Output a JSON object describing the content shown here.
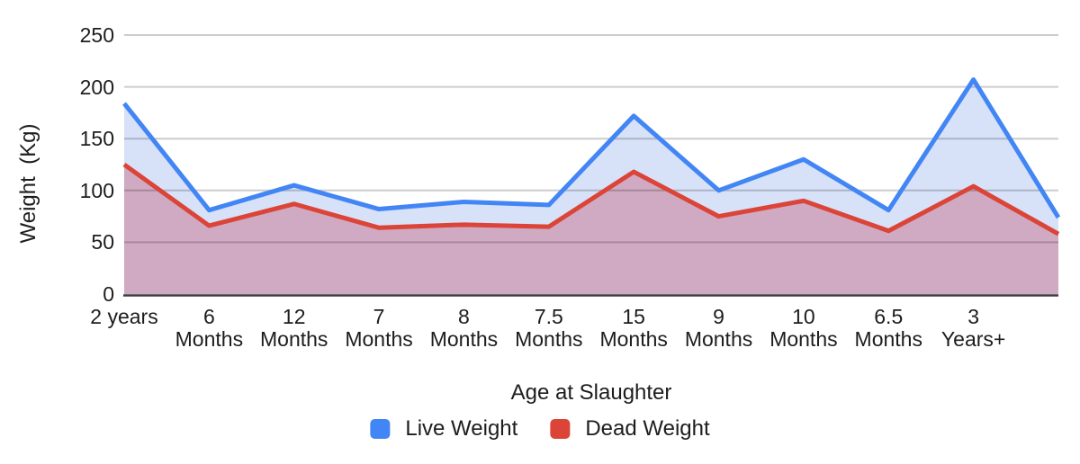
{
  "chart_data": {
    "type": "area",
    "title": "",
    "xlabel": "Age at Slaughter",
    "ylabel": "Weight  (Kg)",
    "ylim": [
      0,
      250
    ],
    "yticks": [
      0,
      50,
      100,
      150,
      200,
      250
    ],
    "grid": true,
    "legend_position": "bottom",
    "categories": [
      "2 years",
      "6 Months",
      "12 Months",
      "7 Months",
      "8 Months",
      "7.5 Months",
      "15 Months",
      "9 Months",
      "10 Months",
      "6.5 Months",
      "3 Years+",
      ""
    ],
    "series": [
      {
        "name": "Live Weight",
        "color": "#4285F4",
        "area_fill": "#D7E1F8",
        "values": [
          184,
          81,
          105,
          82,
          89,
          86,
          172,
          100,
          130,
          81,
          207,
          74
        ]
      },
      {
        "name": "Dead Weight",
        "color": "#DB4437",
        "area_fill": "#D0A9C2",
        "values": [
          125,
          66,
          87,
          64,
          67,
          65,
          118,
          75,
          90,
          61,
          104,
          58
        ]
      }
    ],
    "colors": {
      "gridline": "rgba(0,0,0,0.2)",
      "axis_line": "#3C3C3C",
      "text": "#1D1D1D",
      "background": "#FFFFFF"
    }
  }
}
